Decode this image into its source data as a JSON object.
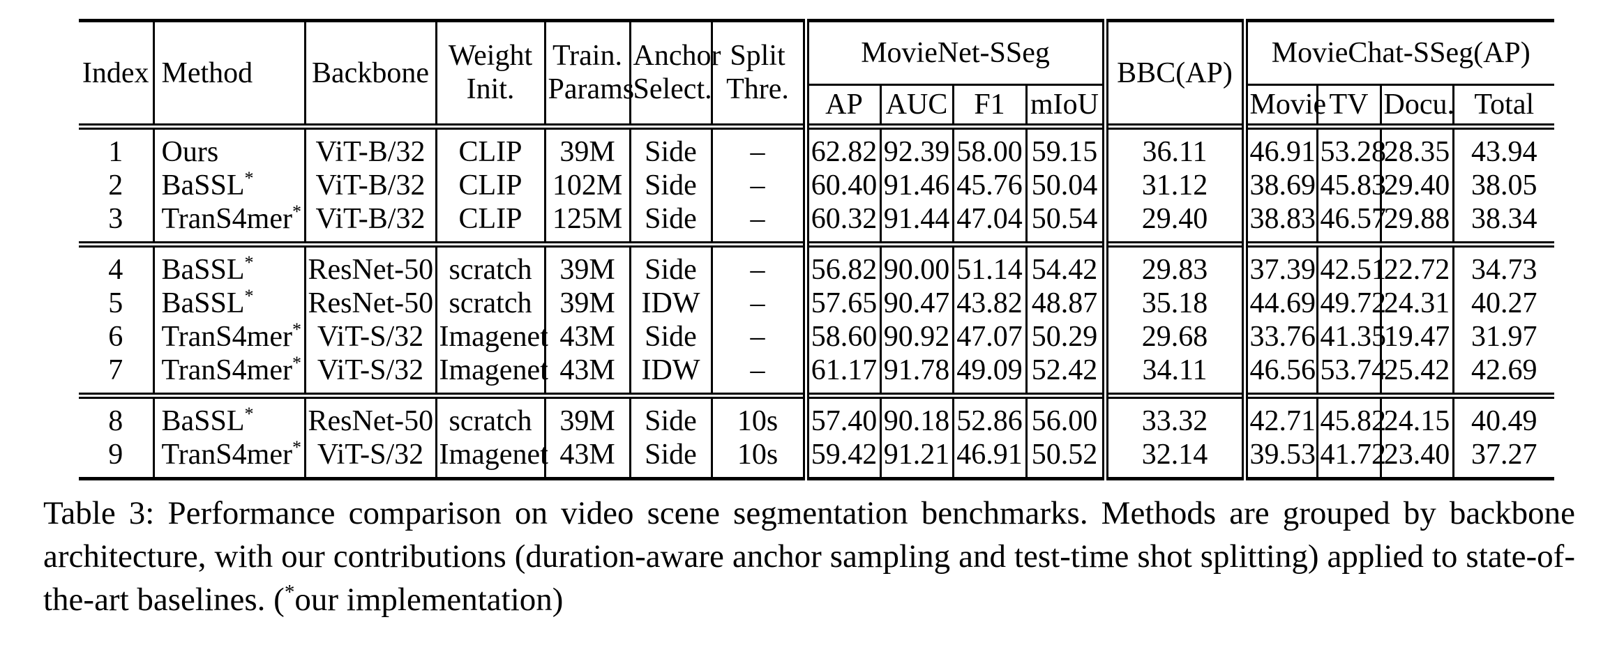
{
  "page": {
    "background": "#ffffff",
    "text_color": "#000000"
  },
  "table": {
    "headers": {
      "index": "Index",
      "method": "Method",
      "backbone": "Backbone",
      "weight_init": "Weight\nInit.",
      "train_params": "Train.\nParams",
      "anchor_select": "Anchor\nSelect.",
      "split_thre": "Split\nThre.",
      "movienet_group": "MovieNet-SSeg",
      "ap": "AP",
      "auc": "AUC",
      "f1": "F1",
      "miou": "mIoU",
      "bbc": "BBC(AP)",
      "moviechat_group": "MovieChat-SSeg(AP)",
      "movie": "Movie",
      "tv": "TV",
      "docu": "Docu.",
      "total": "Total"
    },
    "column_keys": [
      "index",
      "method",
      "backbone",
      "weight_init",
      "train_params",
      "anchor_select",
      "split_thre",
      "ap",
      "auc",
      "f1",
      "miou",
      "bbc_ap",
      "movie",
      "tv",
      "docu",
      "total"
    ],
    "groups": [
      {
        "rows": [
          {
            "index": "1",
            "method": "Ours",
            "method_sup": "",
            "backbone": "ViT-B/32",
            "weight_init": "CLIP",
            "train_params": "39M",
            "anchor_select": "Side",
            "split_thre": "–",
            "ap": "62.82",
            "auc": "92.39",
            "f1": "58.00",
            "miou": "59.15",
            "bbc_ap": "36.11",
            "movie": "46.91",
            "tv": "53.28",
            "docu": "28.35",
            "total": "43.94"
          },
          {
            "index": "2",
            "method": "BaSSL",
            "method_sup": "*",
            "backbone": "ViT-B/32",
            "weight_init": "CLIP",
            "train_params": "102M",
            "anchor_select": "Side",
            "split_thre": "–",
            "ap": "60.40",
            "auc": "91.46",
            "f1": "45.76",
            "miou": "50.04",
            "bbc_ap": "31.12",
            "movie": "38.69",
            "tv": "45.83",
            "docu": "29.40",
            "total": "38.05"
          },
          {
            "index": "3",
            "method": "TranS4mer",
            "method_sup": "*",
            "backbone": "ViT-B/32",
            "weight_init": "CLIP",
            "train_params": "125M",
            "anchor_select": "Side",
            "split_thre": "–",
            "ap": "60.32",
            "auc": "91.44",
            "f1": "47.04",
            "miou": "50.54",
            "bbc_ap": "29.40",
            "movie": "38.83",
            "tv": "46.57",
            "docu": "29.88",
            "total": "38.34"
          }
        ]
      },
      {
        "rows": [
          {
            "index": "4",
            "method": "BaSSL",
            "method_sup": "*",
            "backbone": "ResNet-50",
            "weight_init": "scratch",
            "train_params": "39M",
            "anchor_select": "Side",
            "split_thre": "–",
            "ap": "56.82",
            "auc": "90.00",
            "f1": "51.14",
            "miou": "54.42",
            "bbc_ap": "29.83",
            "movie": "37.39",
            "tv": "42.51",
            "docu": "22.72",
            "total": "34.73"
          },
          {
            "index": "5",
            "method": "BaSSL",
            "method_sup": "*",
            "backbone": "ResNet-50",
            "weight_init": "scratch",
            "train_params": "39M",
            "anchor_select": "IDW",
            "split_thre": "–",
            "ap": "57.65",
            "auc": "90.47",
            "f1": "43.82",
            "miou": "48.87",
            "bbc_ap": "35.18",
            "movie": "44.69",
            "tv": "49.72",
            "docu": "24.31",
            "total": "40.27"
          },
          {
            "index": "6",
            "method": "TranS4mer",
            "method_sup": "*",
            "backbone": "ViT-S/32",
            "weight_init": "Imagenet",
            "train_params": "43M",
            "anchor_select": "Side",
            "split_thre": "–",
            "ap": "58.60",
            "auc": "90.92",
            "f1": "47.07",
            "miou": "50.29",
            "bbc_ap": "29.68",
            "movie": "33.76",
            "tv": "41.35",
            "docu": "19.47",
            "total": "31.97"
          },
          {
            "index": "7",
            "method": "TranS4mer",
            "method_sup": "*",
            "backbone": "ViT-S/32",
            "weight_init": "Imagenet",
            "train_params": "43M",
            "anchor_select": "IDW",
            "split_thre": "–",
            "ap": "61.17",
            "auc": "91.78",
            "f1": "49.09",
            "miou": "52.42",
            "bbc_ap": "34.11",
            "movie": "46.56",
            "tv": "53.74",
            "docu": "25.42",
            "total": "42.69"
          }
        ]
      },
      {
        "rows": [
          {
            "index": "8",
            "method": "BaSSL",
            "method_sup": "*",
            "backbone": "ResNet-50",
            "weight_init": "scratch",
            "train_params": "39M",
            "anchor_select": "Side",
            "split_thre": "10s",
            "ap": "57.40",
            "auc": "90.18",
            "f1": "52.86",
            "miou": "56.00",
            "bbc_ap": "33.32",
            "movie": "42.71",
            "tv": "45.82",
            "docu": "24.15",
            "total": "40.49"
          },
          {
            "index": "9",
            "method": "TranS4mer",
            "method_sup": "*",
            "backbone": "ViT-S/32",
            "weight_init": "Imagenet",
            "train_params": "43M",
            "anchor_select": "Side",
            "split_thre": "10s",
            "ap": "59.42",
            "auc": "91.21",
            "f1": "46.91",
            "miou": "50.52",
            "bbc_ap": "32.14",
            "movie": "39.53",
            "tv": "41.72",
            "docu": "23.40",
            "total": "37.27"
          }
        ]
      }
    ]
  },
  "caption": {
    "text": "Table 3: Performance comparison on video scene segmentation benchmarks. Methods are grouped by backbone architecture, with our contributions (duration-aware anchor sampling and test-time shot splitting) applied to state-of-the-art baselines. (",
    "star": "*",
    "suffix": "our implementation)"
  }
}
